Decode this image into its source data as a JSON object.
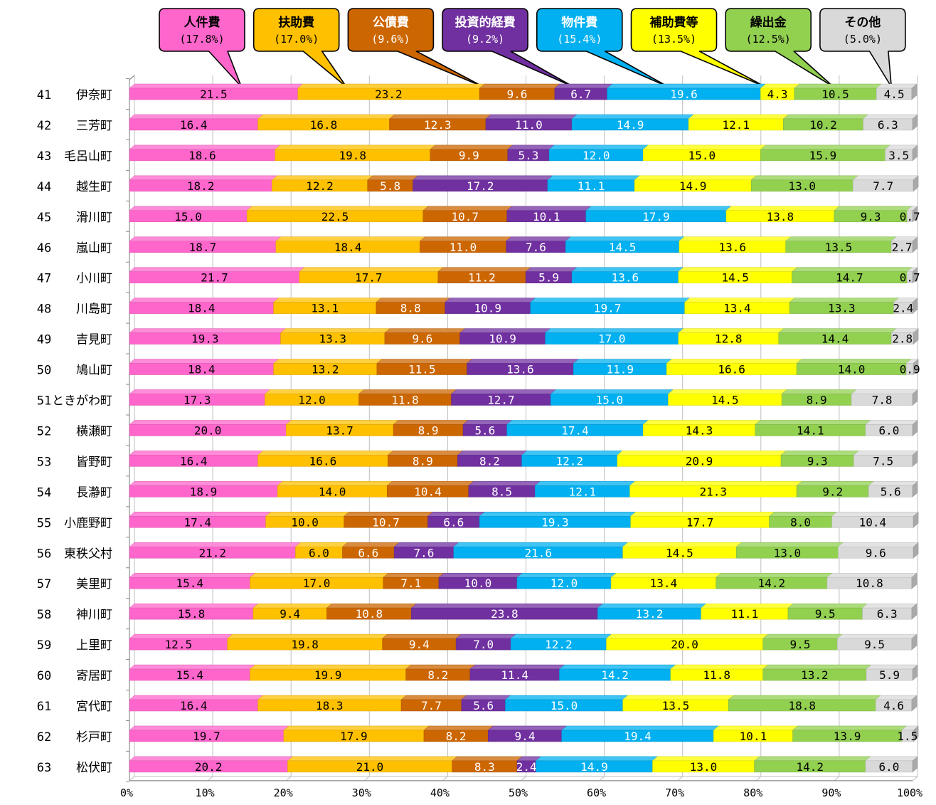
{
  "chart_data": {
    "type": "bar",
    "orientation": "horizontal",
    "stacked": true,
    "normalized": "percent",
    "categories": [
      "41 伊奈町",
      "42 三芳町",
      "43 毛呂山町",
      "44 越生町",
      "45 滑川町",
      "46 嵐山町",
      "47 小川町",
      "48 川島町",
      "49 吉見町",
      "50 鳩山町",
      "51 ときがわ町",
      "52 横瀬町",
      "53 皆野町",
      "54 長瀞町",
      "55 小鹿野町",
      "56 東秩父村",
      "57 美里町",
      "58 神川町",
      "59 上里町",
      "60 寄居町",
      "61 宮代町",
      "62 杉戸町",
      "63 松伏町"
    ],
    "category_numbers": [
      "41",
      "42",
      "43",
      "44",
      "45",
      "46",
      "47",
      "48",
      "49",
      "50",
      "51",
      "52",
      "53",
      "54",
      "55",
      "56",
      "57",
      "58",
      "59",
      "60",
      "61",
      "62",
      "63"
    ],
    "category_names": [
      "伊奈町",
      "三芳町",
      "毛呂山町",
      "越生町",
      "滑川町",
      "嵐山町",
      "小川町",
      "川島町",
      "吉見町",
      "鳩山町",
      "ときがわ町",
      "横瀬町",
      "皆野町",
      "長瀞町",
      "小鹿野町",
      "東秩父村",
      "美里町",
      "神川町",
      "上里町",
      "寄居町",
      "宮代町",
      "杉戸町",
      "松伏町"
    ],
    "series": [
      {
        "name": "人件費",
        "average": "(17.8%)",
        "color": "#ff66cc",
        "values": [
          21.5,
          16.4,
          18.6,
          18.2,
          15.0,
          18.7,
          21.7,
          18.4,
          19.3,
          18.4,
          17.3,
          20.0,
          16.4,
          18.9,
          17.4,
          21.2,
          15.4,
          15.8,
          12.5,
          15.4,
          16.4,
          19.7,
          20.2
        ]
      },
      {
        "name": "扶助費",
        "average": "(17.0%)",
        "color": "#ffc000",
        "values": [
          23.2,
          16.8,
          19.8,
          12.2,
          22.5,
          18.4,
          17.7,
          13.1,
          13.3,
          13.2,
          12.0,
          13.7,
          16.6,
          14.0,
          10.0,
          6.0,
          17.0,
          9.4,
          19.8,
          19.9,
          18.3,
          17.9,
          21.0
        ]
      },
      {
        "name": "公債費",
        "average": "(9.6%)",
        "color": "#cc6600",
        "values": [
          9.6,
          12.3,
          9.9,
          5.8,
          10.7,
          11.0,
          11.2,
          8.8,
          9.6,
          11.5,
          11.8,
          8.9,
          8.9,
          10.4,
          10.7,
          6.6,
          7.1,
          10.8,
          9.4,
          8.2,
          7.7,
          8.2,
          8.3
        ]
      },
      {
        "name": "投資的経費",
        "average": "(9.2%)",
        "color": "#7030a0",
        "values": [
          6.7,
          11.0,
          5.3,
          17.2,
          10.1,
          7.6,
          5.9,
          10.9,
          10.9,
          13.6,
          12.7,
          5.6,
          8.2,
          8.5,
          6.6,
          7.6,
          10.0,
          23.8,
          7.0,
          11.4,
          5.6,
          9.4,
          2.4
        ]
      },
      {
        "name": "物件費",
        "average": "(15.4%)",
        "color": "#00b0f0",
        "values": [
          19.6,
          14.9,
          12.0,
          11.1,
          17.9,
          14.5,
          13.6,
          19.7,
          17.0,
          11.9,
          15.0,
          17.4,
          12.2,
          12.1,
          19.3,
          21.6,
          12.0,
          13.2,
          12.2,
          14.2,
          15.0,
          19.4,
          14.9
        ]
      },
      {
        "name": "補助費等",
        "average": "(13.5%)",
        "color": "#ffff00",
        "values": [
          4.3,
          12.1,
          15.0,
          14.9,
          13.8,
          13.6,
          14.5,
          13.4,
          12.8,
          16.6,
          14.5,
          14.3,
          20.9,
          21.3,
          17.7,
          14.5,
          13.4,
          11.1,
          20.0,
          11.8,
          13.5,
          10.1,
          13.0
        ]
      },
      {
        "name": "繰出金",
        "average": "(12.5%)",
        "color": "#92d050",
        "values": [
          10.5,
          10.2,
          15.9,
          13.0,
          9.3,
          13.5,
          14.7,
          13.3,
          14.4,
          14.0,
          8.9,
          14.1,
          9.3,
          9.2,
          8.0,
          13.0,
          14.2,
          9.5,
          9.5,
          13.2,
          18.8,
          13.9,
          14.2
        ]
      },
      {
        "name": "その他",
        "average": "(5.0%)",
        "color": "#d9d9d9",
        "values": [
          4.5,
          6.3,
          3.5,
          7.7,
          0.7,
          2.7,
          0.7,
          2.4,
          2.8,
          0.9,
          7.8,
          6.0,
          7.5,
          5.6,
          10.4,
          9.6,
          10.8,
          6.3,
          9.5,
          5.9,
          4.6,
          1.5,
          6.0
        ]
      }
    ],
    "value_labels": [
      [
        "21.5",
        "23.2",
        "9.6",
        "6.7",
        "19.6",
        "4.3",
        "10.5",
        "4.5"
      ],
      [
        "16.4",
        "16.8",
        "12.3",
        "11.0",
        "14.9",
        "12.1",
        "10.2",
        "6.3"
      ],
      [
        "18.6",
        "19.8",
        "9.9",
        "5.3",
        "12.0",
        "15.0",
        "15.9",
        "3.5"
      ],
      [
        "18.2",
        "12.2",
        "5.8",
        "17.2",
        "11.1",
        "14.9",
        "13.0",
        "7.7"
      ],
      [
        "15.0",
        "22.5",
        "10.7",
        "10.1",
        "17.9",
        "13.8",
        "9.3",
        "0.7"
      ],
      [
        "18.7",
        "18.4",
        "11.0",
        "7.6",
        "14.5",
        "13.6",
        "13.5",
        "2.7"
      ],
      [
        "21.7",
        "17.7",
        "11.2",
        "5.9",
        "13.6",
        "14.5",
        "14.7",
        "0.7"
      ],
      [
        "18.4",
        "13.1",
        "8.8",
        "10.9",
        "19.7",
        "13.4",
        "13.3",
        "2.4"
      ],
      [
        "19.3",
        "13.3",
        "9.6",
        "10.9",
        "17.0",
        "12.8",
        "14.4",
        "2.8"
      ],
      [
        "18.4",
        "13.2",
        "11.5",
        "13.6",
        "11.9",
        "16.6",
        "14.0",
        "0.9"
      ],
      [
        "17.3",
        "12.0",
        "11.8",
        "12.7",
        "15.0",
        "14.5",
        "8.9",
        "7.8"
      ],
      [
        "20.0",
        "13.7",
        "8.9",
        "5.6",
        "17.4",
        "14.3",
        "14.1",
        "6.0"
      ],
      [
        "16.4",
        "16.6",
        "8.9",
        "8.2",
        "12.2",
        "20.9",
        "9.3",
        "7.5"
      ],
      [
        "18.9",
        "14.0",
        "10.4",
        "8.5",
        "12.1",
        "21.3",
        "9.2",
        "5.6"
      ],
      [
        "17.4",
        "10.0",
        "10.7",
        "6.6",
        "19.3",
        "17.7",
        "8.0",
        "10.4"
      ],
      [
        "21.2",
        "6.0",
        "6.6",
        "7.6",
        "21.6",
        "14.5",
        "13.0",
        "9.6"
      ],
      [
        "15.4",
        "17.0",
        "7.1",
        "10.0",
        "12.0",
        "13.4",
        "14.2",
        "10.8"
      ],
      [
        "15.8",
        "9.4",
        "10.8",
        "23.8",
        "13.2",
        "11.1",
        "9.5",
        "6.3"
      ],
      [
        "12.5",
        "19.8",
        "9.4",
        "7.0",
        "12.2",
        "20.0",
        "9.5",
        "9.5"
      ],
      [
        "15.4",
        "19.9",
        "8.2",
        "11.4",
        "14.2",
        "11.8",
        "13.2",
        "5.9"
      ],
      [
        "16.4",
        "18.3",
        "7.7",
        "5.6",
        "15.0",
        "13.5",
        "18.8",
        "4.6"
      ],
      [
        "19.7",
        "17.9",
        "8.2",
        "9.4",
        "19.4",
        "10.1",
        "13.9",
        "1.5"
      ],
      [
        "20.2",
        "21.0",
        "8.3",
        "2.4",
        "14.9",
        "13.0",
        "14.2",
        "6.0"
      ]
    ],
    "x_ticks": [
      "0%",
      "10%",
      "20%",
      "30%",
      "40%",
      "50%",
      "60%",
      "70%",
      "80%",
      "90%",
      "100%"
    ],
    "xlim": [
      0,
      100
    ],
    "grid": "vertical",
    "legend": "top callouts",
    "legend_pointer_values": [
      14.3,
      27.7,
      45.2,
      56.7,
      68.8,
      81.2,
      89.9,
      97.3
    ],
    "title": "",
    "xlabel": "",
    "ylabel": ""
  }
}
